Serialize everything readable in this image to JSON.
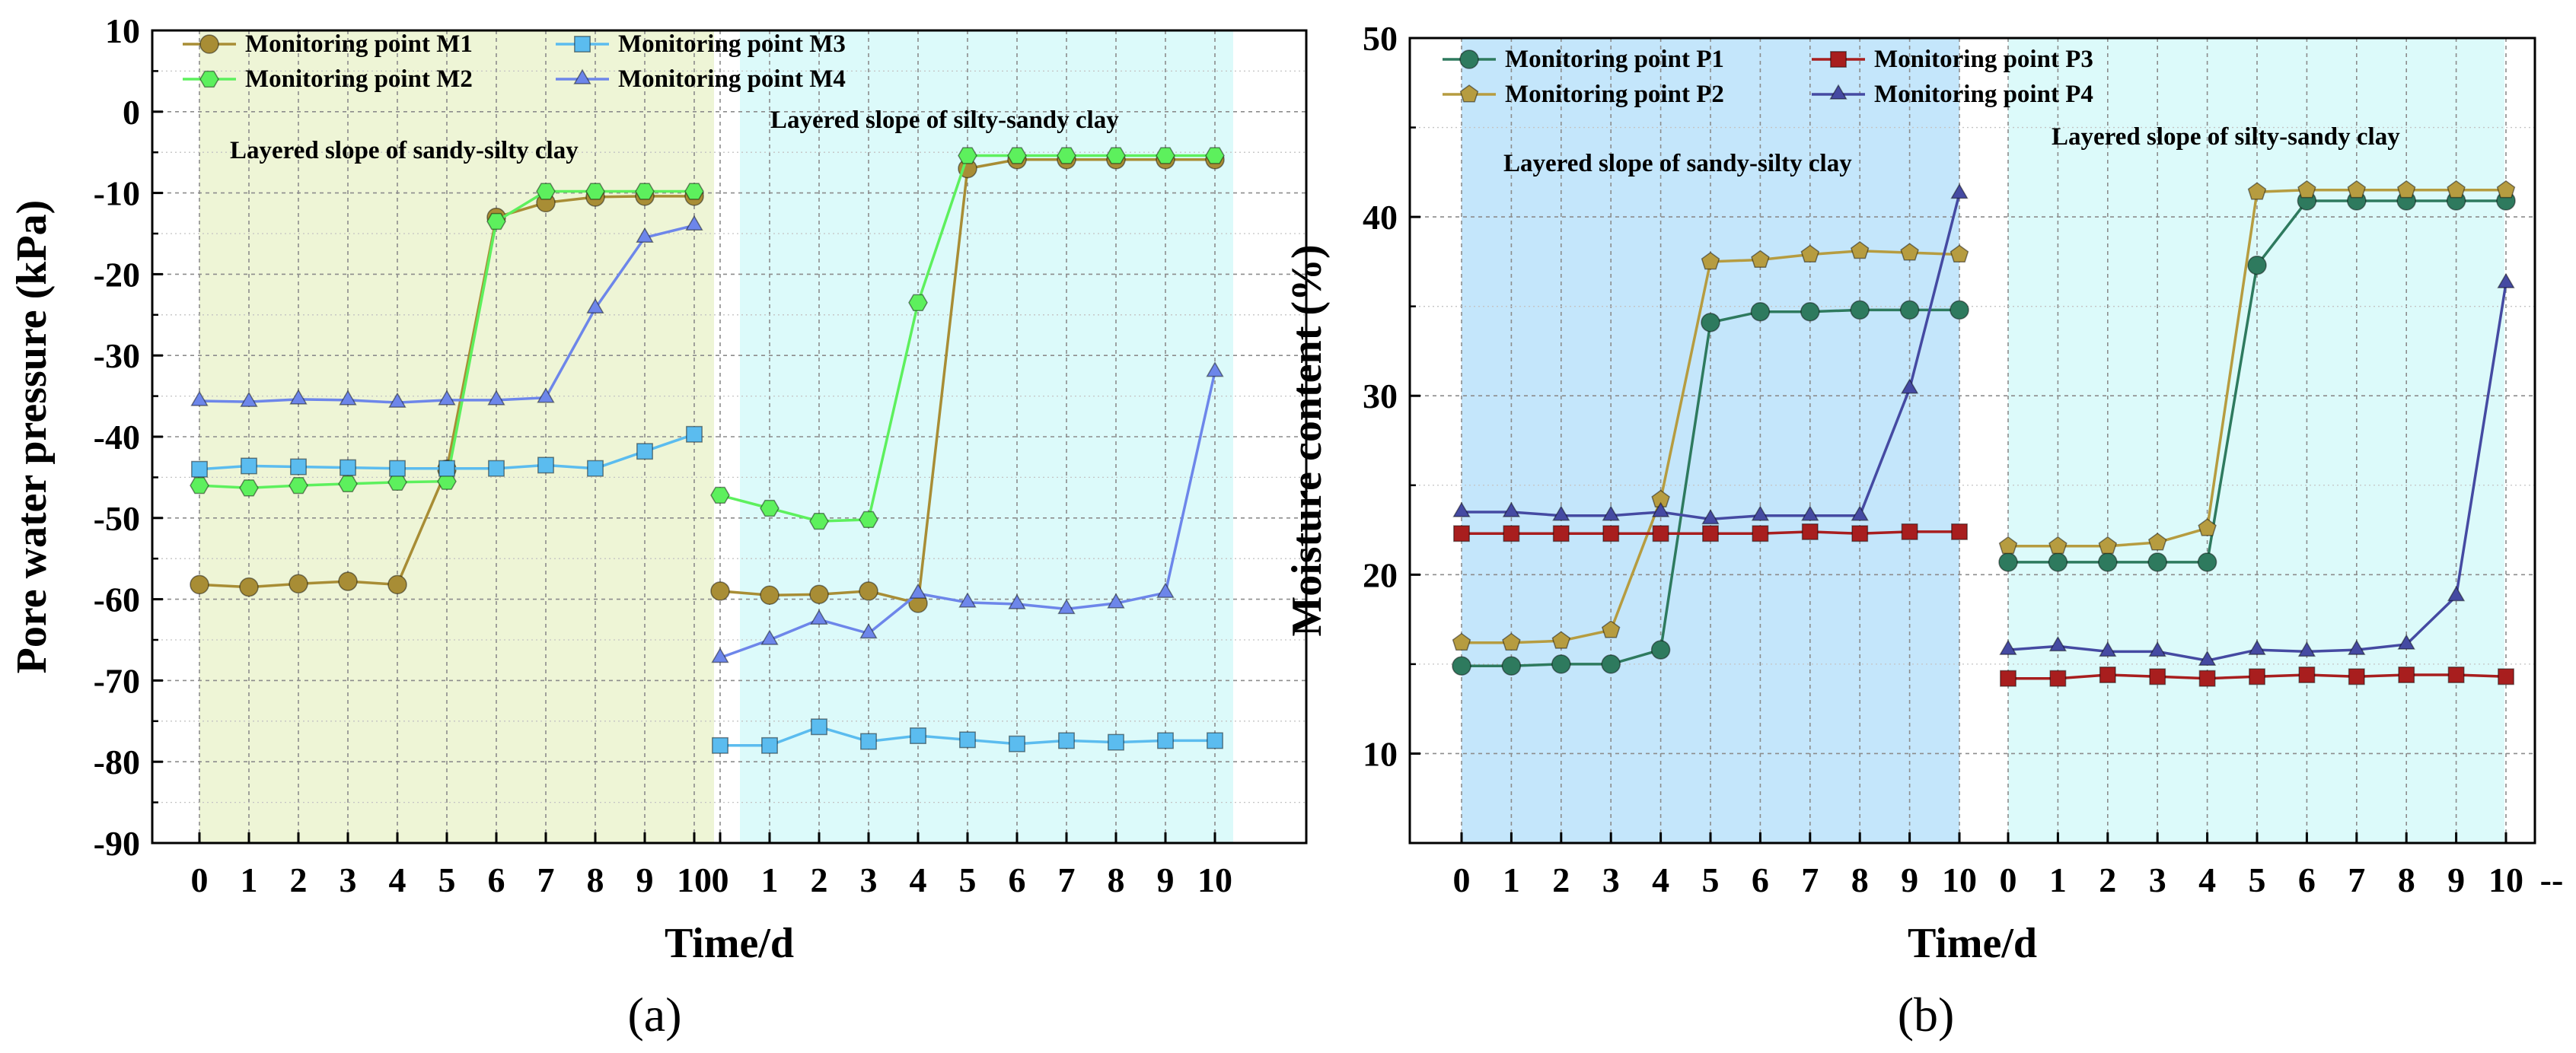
{
  "chart_data": [
    {
      "type": "line",
      "panel_label": "(a)",
      "xlabel": "Time/d",
      "ylabel": "Pore water pressure (kPa)",
      "ylim": [
        -90,
        10
      ],
      "yticks": [
        "10",
        "0",
        "-10",
        "-20",
        "-30",
        "-40",
        "-50",
        "-60",
        "-70",
        "-80",
        "-90"
      ],
      "xtick_labels": [
        "0",
        "1",
        "2",
        "3",
        "4",
        "5",
        "6",
        "7",
        "8",
        "9",
        "10",
        "0",
        "1",
        "2",
        "3",
        "4",
        "5",
        "6",
        "7",
        "8",
        "9",
        "10"
      ],
      "grid": true,
      "legend_position": "top-left",
      "regions": [
        {
          "label": "Layered slope of sandy-silty clay",
          "color": "#eef5d6"
        },
        {
          "label": "Layered slope of silty-sandy clay",
          "color": "#dcfafa"
        }
      ],
      "series": [
        {
          "name": "Monitoring point M1",
          "color": "#a88d35",
          "marker": "circle",
          "segments": [
            [
              -58.2,
              -58.5,
              -58.1,
              -57.8,
              -58.2,
              -44.0,
              -13.0,
              -11.2,
              -10.5,
              -10.4,
              -10.4
            ],
            [
              -59.0,
              -59.5,
              -59.4,
              -59.0,
              -60.5,
              -7.0,
              -5.9,
              -5.9,
              -5.9,
              -5.9,
              -5.9
            ]
          ]
        },
        {
          "name": "Monitoring point M2",
          "color": "#5df05d",
          "marker": "hexagon",
          "segments": [
            [
              -46.0,
              -46.3,
              -46.0,
              -45.8,
              -45.6,
              -45.5,
              -13.5,
              -9.8,
              -9.8,
              -9.8,
              -9.8
            ],
            [
              -47.2,
              -48.8,
              -50.4,
              -50.2,
              -23.5,
              -5.4,
              -5.4,
              -5.4,
              -5.4,
              -5.4,
              -5.4
            ]
          ]
        },
        {
          "name": "Monitoring point M3",
          "color": "#5bbcef",
          "marker": "square",
          "segments": [
            [
              -44.0,
              -43.6,
              -43.7,
              -43.8,
              -43.9,
              -43.9,
              -43.9,
              -43.5,
              -43.9,
              -41.8,
              -39.7
            ],
            [
              -78.0,
              -78.0,
              -75.7,
              -77.5,
              -76.8,
              -77.3,
              -77.8,
              -77.4,
              -77.6,
              -77.4,
              -77.4
            ]
          ]
        },
        {
          "name": "Monitoring point M4",
          "color": "#6d86ea",
          "marker": "triangle",
          "segments": [
            [
              -35.6,
              -35.7,
              -35.4,
              -35.5,
              -35.8,
              -35.5,
              -35.5,
              -35.2,
              -24.2,
              -15.5,
              -14.0
            ],
            [
              -67.2,
              -65.0,
              -62.5,
              -64.2,
              -59.3,
              -60.4,
              -60.6,
              -61.2,
              -60.5,
              -59.2,
              -32.0
            ]
          ]
        }
      ]
    },
    {
      "type": "line",
      "panel_label": "(b)",
      "xlabel": "Time/d",
      "ylabel": "Moisture content (%)",
      "ylim": [
        5,
        50
      ],
      "yticks": [
        "50",
        "40",
        "30",
        "20",
        "10"
      ],
      "xtick_labels": [
        "0",
        "1",
        "2",
        "3",
        "4",
        "5",
        "6",
        "7",
        "8",
        "9",
        "10",
        "0",
        "1",
        "2",
        "3",
        "4",
        "5",
        "6",
        "7",
        "8",
        "9",
        "10",
        "--"
      ],
      "grid": true,
      "legend_position": "top-left",
      "regions": [
        {
          "label": "Layered slope of sandy-silty clay",
          "color": "#c4e6fb"
        },
        {
          "label": "Layered slope of silty-sandy clay",
          "color": "#dcfafa"
        }
      ],
      "series": [
        {
          "name": "Monitoring point P1",
          "color": "#2e7a5e",
          "marker": "circle",
          "segments": [
            [
              14.9,
              14.9,
              15.0,
              15.0,
              15.8,
              34.1,
              34.7,
              34.7,
              34.8,
              34.8,
              34.8
            ],
            [
              20.7,
              20.7,
              20.7,
              20.7,
              20.7,
              37.3,
              40.9,
              40.9,
              40.9,
              40.9,
              40.9
            ]
          ]
        },
        {
          "name": "Monitoring point P2",
          "color": "#b69c40",
          "marker": "pentagon",
          "segments": [
            [
              16.2,
              16.2,
              16.3,
              16.9,
              24.2,
              37.5,
              37.6,
              37.9,
              38.1,
              38.0,
              37.9
            ],
            [
              21.6,
              21.6,
              21.6,
              21.8,
              22.6,
              41.4,
              41.5,
              41.5,
              41.5,
              41.5,
              41.5
            ]
          ]
        },
        {
          "name": "Monitoring point P3",
          "color": "#a81e1e",
          "marker": "square",
          "segments": [
            [
              22.3,
              22.3,
              22.3,
              22.3,
              22.3,
              22.3,
              22.3,
              22.4,
              22.3,
              22.4,
              22.4
            ],
            [
              14.2,
              14.2,
              14.4,
              14.3,
              14.2,
              14.3,
              14.4,
              14.3,
              14.4,
              14.4,
              14.3
            ]
          ]
        },
        {
          "name": "Monitoring point P4",
          "color": "#454aa2",
          "marker": "triangle",
          "segments": [
            [
              23.5,
              23.5,
              23.3,
              23.3,
              23.5,
              23.1,
              23.3,
              23.3,
              23.3,
              30.4,
              41.3
            ],
            [
              15.8,
              16.0,
              15.7,
              15.7,
              15.2,
              15.8,
              15.7,
              15.8,
              16.1,
              18.8,
              36.3
            ]
          ]
        }
      ]
    }
  ]
}
